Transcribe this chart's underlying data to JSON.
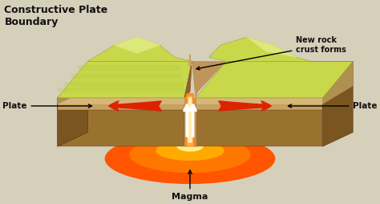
{
  "title": "Constructive Plate\nBoundary",
  "title_fontsize": 9,
  "bg_color": "#d6cfba",
  "label_new_rock": "New rock\ncrust forms",
  "label_plate_left": "Plate",
  "label_plate_right": "Plate",
  "label_magma": "Magma",
  "annotation_color": "#111111",
  "text_color": "#111111",
  "color_green_top": "#c8d84a",
  "color_green_light": "#dce87a",
  "color_brown_front": "#b08840",
  "color_brown_mid": "#9a7230",
  "color_brown_dark": "#7a5520",
  "color_brown_side": "#6a4510",
  "color_magma_orange": "#ff5500",
  "color_magma_bright": "#ff8800",
  "color_rift_tan": "#c8a060",
  "color_red_arrow": "#dd2200"
}
